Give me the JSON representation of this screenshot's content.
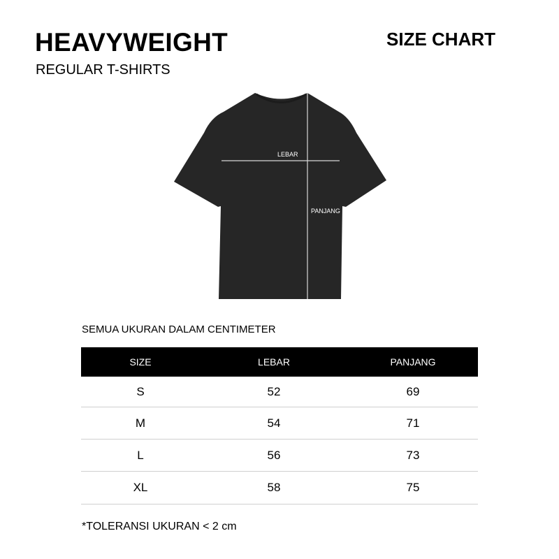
{
  "header": {
    "title": "HEAVYWEIGHT",
    "subtitle": "REGULAR T-SHIRTS",
    "chart_label": "SIZE CHART"
  },
  "diagram": {
    "width_label": "LEBAR",
    "length_label": "PANJANG",
    "shirt_color": "#262626",
    "line_color": "#d8d8d8"
  },
  "units_note": "SEMUA UKURAN DALAM CENTIMETER",
  "table": {
    "columns": [
      "SIZE",
      "LEBAR",
      "PANJANG"
    ],
    "rows": [
      [
        "S",
        "52",
        "69"
      ],
      [
        "M",
        "54",
        "71"
      ],
      [
        "L",
        "56",
        "73"
      ],
      [
        "XL",
        "58",
        "75"
      ]
    ]
  },
  "tolerance_note": "*TOLERANSI UKURAN < 2 cm"
}
